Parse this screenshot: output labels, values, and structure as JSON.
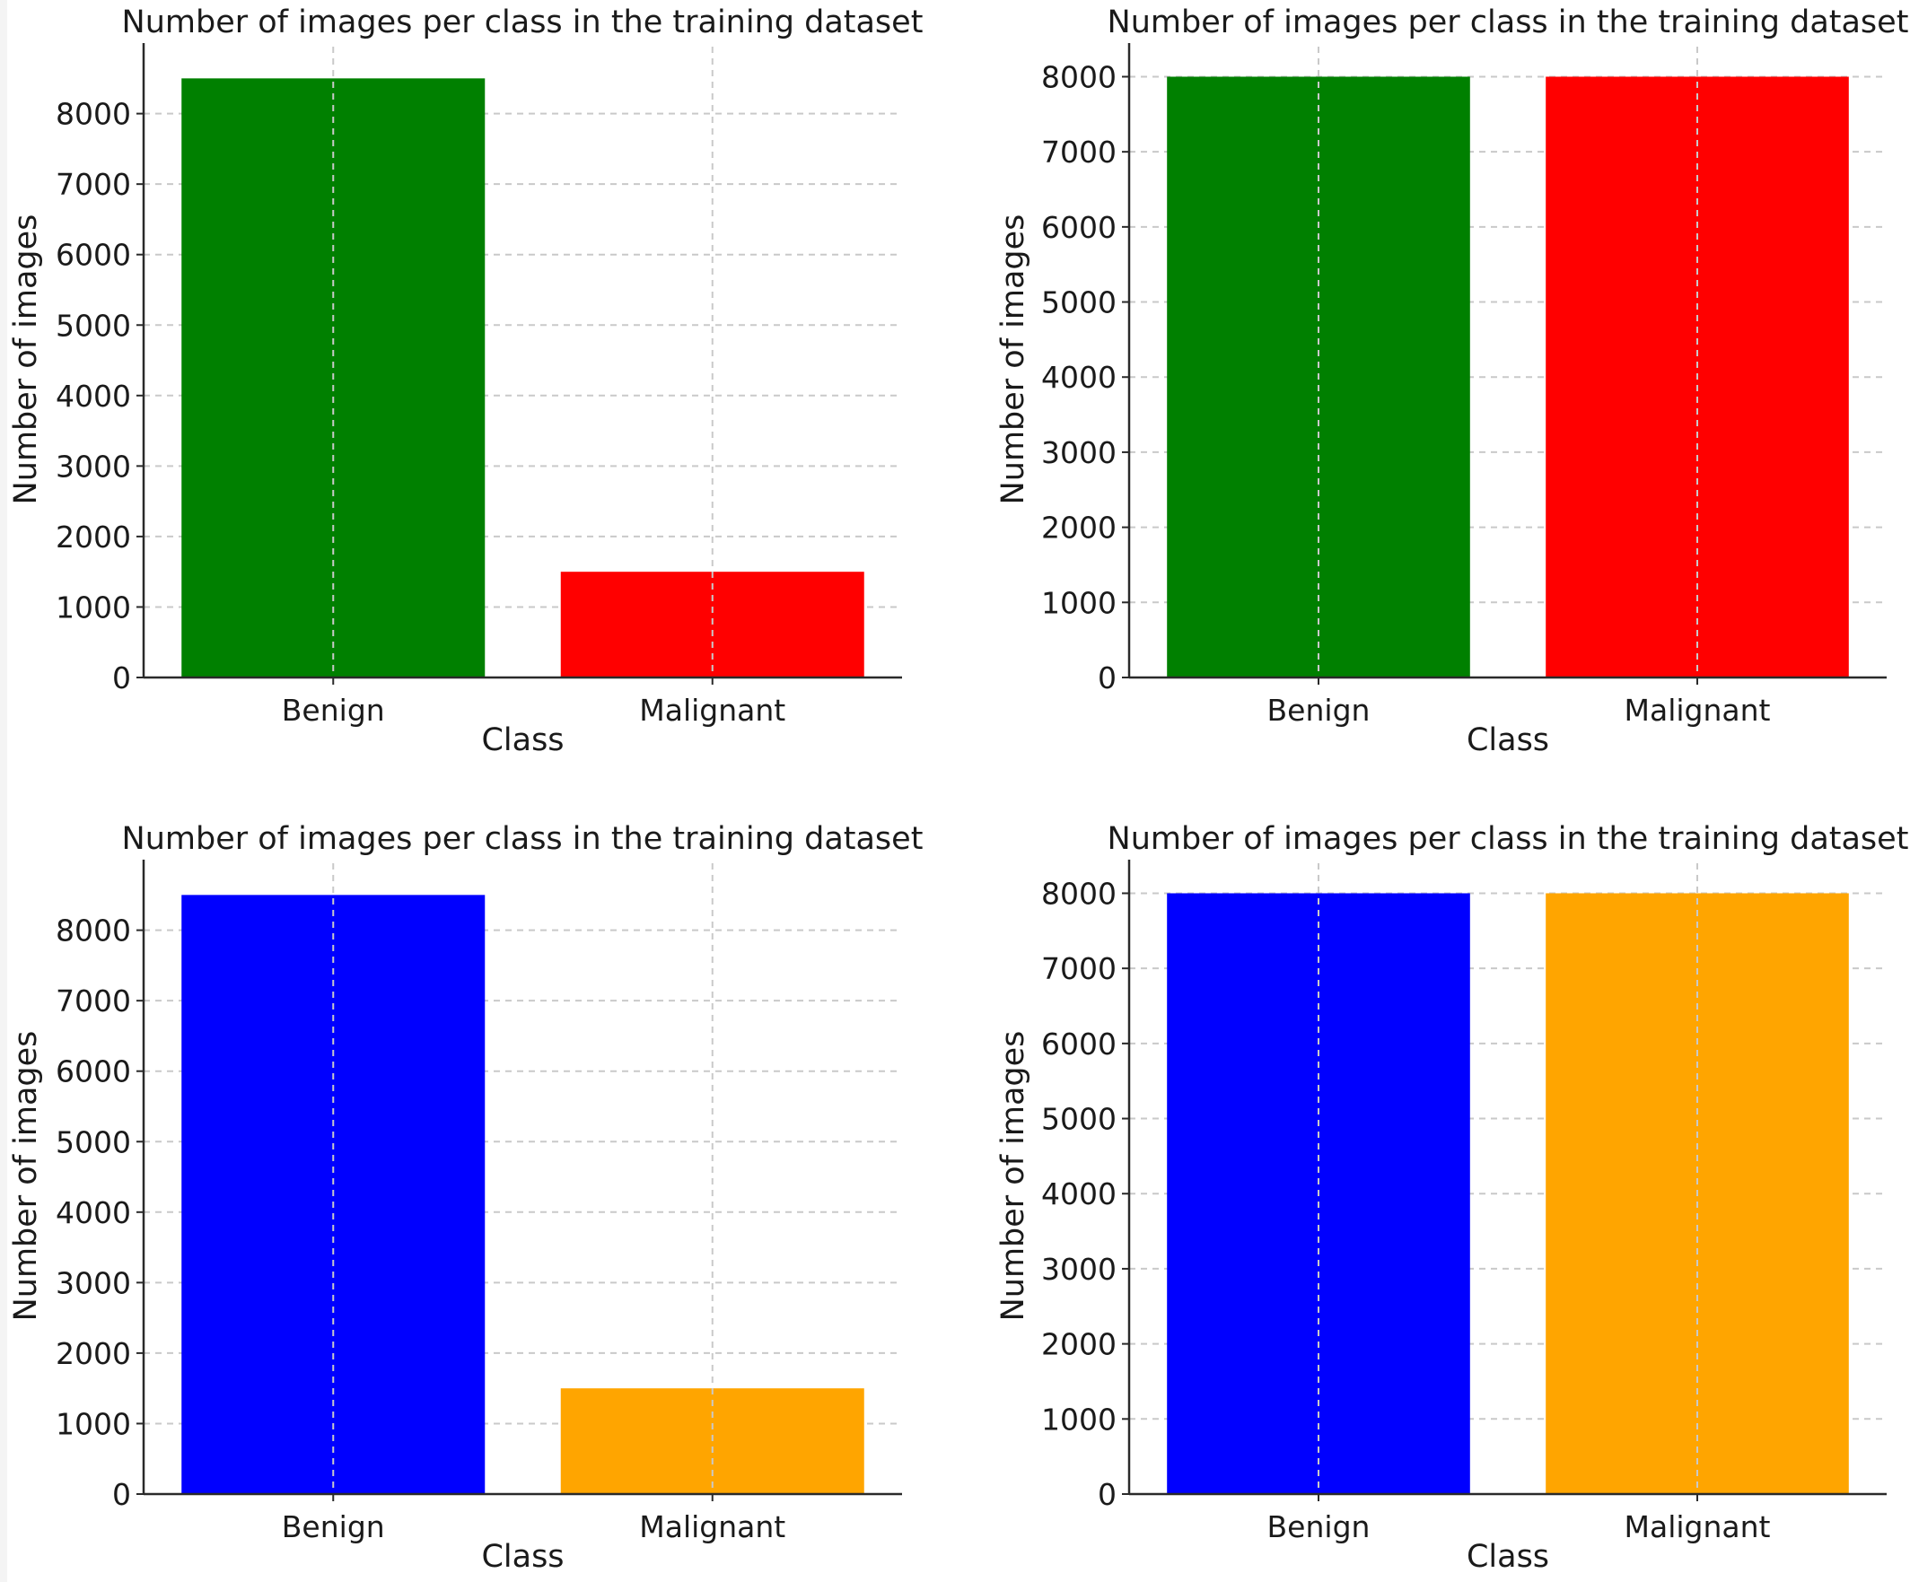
{
  "figure": {
    "background": "#f4f4f4",
    "panel_background": "#ffffff"
  },
  "chart_data": [
    {
      "type": "bar",
      "title": "Number of images per class in the training dataset",
      "xlabel": "Class",
      "ylabel": "Number of images",
      "categories": [
        "Benign",
        "Malignant"
      ],
      "values": [
        8500,
        1500
      ],
      "colors": [
        "#008000",
        "#ff0000"
      ],
      "ylim": [
        0,
        8950
      ],
      "yticks": [
        0,
        1000,
        2000,
        3000,
        4000,
        5000,
        6000,
        7000,
        8000
      ],
      "grid": true
    },
    {
      "type": "bar",
      "title": "Number of images per class in the training dataset",
      "xlabel": "Class",
      "ylabel": "Number of images",
      "categories": [
        "Benign",
        "Malignant"
      ],
      "values": [
        8000,
        8000
      ],
      "colors": [
        "#008000",
        "#ff0000"
      ],
      "ylim": [
        0,
        8400
      ],
      "yticks": [
        0,
        1000,
        2000,
        3000,
        4000,
        5000,
        6000,
        7000,
        8000
      ],
      "grid": true
    },
    {
      "type": "bar",
      "title": "Number of images per class in the training dataset",
      "xlabel": "Class",
      "ylabel": "Number of images",
      "categories": [
        "Benign",
        "Malignant"
      ],
      "values": [
        8500,
        1500
      ],
      "colors": [
        "#0000ff",
        "#ffa500"
      ],
      "ylim": [
        0,
        8950
      ],
      "yticks": [
        0,
        1000,
        2000,
        3000,
        4000,
        5000,
        6000,
        7000,
        8000
      ],
      "grid": true
    },
    {
      "type": "bar",
      "title": "Number of images per class in the training dataset",
      "xlabel": "Class",
      "ylabel": "Number of images",
      "categories": [
        "Benign",
        "Malignant"
      ],
      "values": [
        8000,
        8000
      ],
      "colors": [
        "#0000ff",
        "#ffa500"
      ],
      "ylim": [
        0,
        8400
      ],
      "yticks": [
        0,
        1000,
        2000,
        3000,
        4000,
        5000,
        6000,
        7000,
        8000
      ],
      "grid": true
    }
  ]
}
